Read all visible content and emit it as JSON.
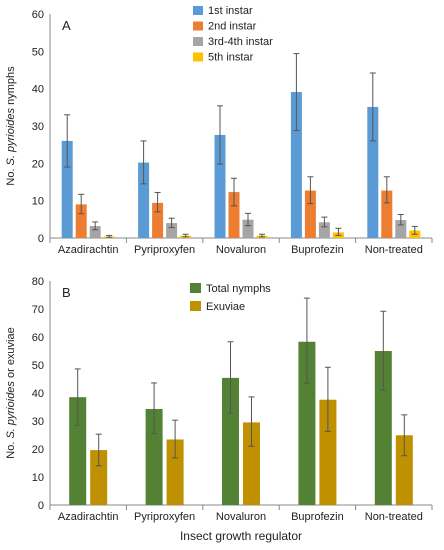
{
  "chart_data": [
    {
      "type": "bar",
      "panel_label": "A",
      "ylabel_prefix": "No. ",
      "ylabel_italic": "S. pyrioides",
      "ylabel_suffix": " nymphs",
      "ylim": [
        0,
        60
      ],
      "yticks": [
        "0",
        "10",
        "20",
        "30",
        "40",
        "50",
        "60"
      ],
      "categories": [
        "Azadirachtin",
        "Pyriproxyfen",
        "Novaluron",
        "Buprofezin",
        "Non-treated"
      ],
      "legend_position": "top-right",
      "series": [
        {
          "name": "1st instar",
          "color": "#5B9BD5",
          "values": [
            26,
            20.2,
            27.6,
            39.1,
            35.1
          ],
          "err_low": [
            19,
            14.5,
            19.8,
            28.8,
            26
          ],
          "err_high": [
            33,
            26,
            35.4,
            49.4,
            44.2
          ]
        },
        {
          "name": "2nd instar",
          "color": "#ED7D31",
          "values": [
            9,
            9.4,
            12.3,
            12.7,
            12.7
          ],
          "err_low": [
            6.5,
            7,
            8.6,
            9.2,
            9.4
          ],
          "err_high": [
            11.7,
            12.2,
            16,
            16.4,
            16.4
          ]
        },
        {
          "name": "3rd-4th instar",
          "color": "#A5A5A5",
          "values": [
            3.2,
            4,
            4.9,
            4.2,
            4.8
          ],
          "err_low": [
            2.2,
            2.8,
            3.3,
            3,
            3.5
          ],
          "err_high": [
            4.3,
            5.3,
            6.6,
            5.6,
            6.3
          ]
        },
        {
          "name": "5th instar",
          "color": "#FFC000",
          "values": [
            0.4,
            0.6,
            0.6,
            1.5,
            2
          ],
          "err_low": [
            0.2,
            0.3,
            0.3,
            0.7,
            1
          ],
          "err_high": [
            0.7,
            1,
            1,
            2.6,
            3.1
          ]
        }
      ]
    },
    {
      "type": "bar",
      "panel_label": "B",
      "ylabel_prefix": "No. ",
      "ylabel_italic": "S. pyrioides",
      "ylabel_suffix": " or exuviae",
      "xlabel": "Insect growth regulator",
      "ylim": [
        0,
        80
      ],
      "yticks": [
        "0",
        "10",
        "20",
        "30",
        "40",
        "50",
        "60",
        "70",
        "80"
      ],
      "categories": [
        "Azadirachtin",
        "Pyriproxyfen",
        "Novaluron",
        "Buprofezin",
        "Non-treated"
      ],
      "legend_position": "top-center",
      "series": [
        {
          "name": "Total nymphs",
          "color": "#548235",
          "values": [
            38.5,
            34.3,
            45.4,
            58.3,
            55
          ],
          "err_low": [
            28.5,
            25.5,
            32.8,
            43.5,
            41
          ],
          "err_high": [
            48.6,
            43.6,
            58.3,
            73.9,
            69.2
          ]
        },
        {
          "name": "Exuviae",
          "color": "#BF9000",
          "values": [
            19.6,
            23.4,
            29.5,
            37.6,
            24.9
          ],
          "err_low": [
            14,
            16.8,
            21,
            26.3,
            17.6
          ],
          "err_high": [
            25.3,
            30.3,
            38.6,
            49.2,
            32.2
          ]
        }
      ]
    }
  ]
}
